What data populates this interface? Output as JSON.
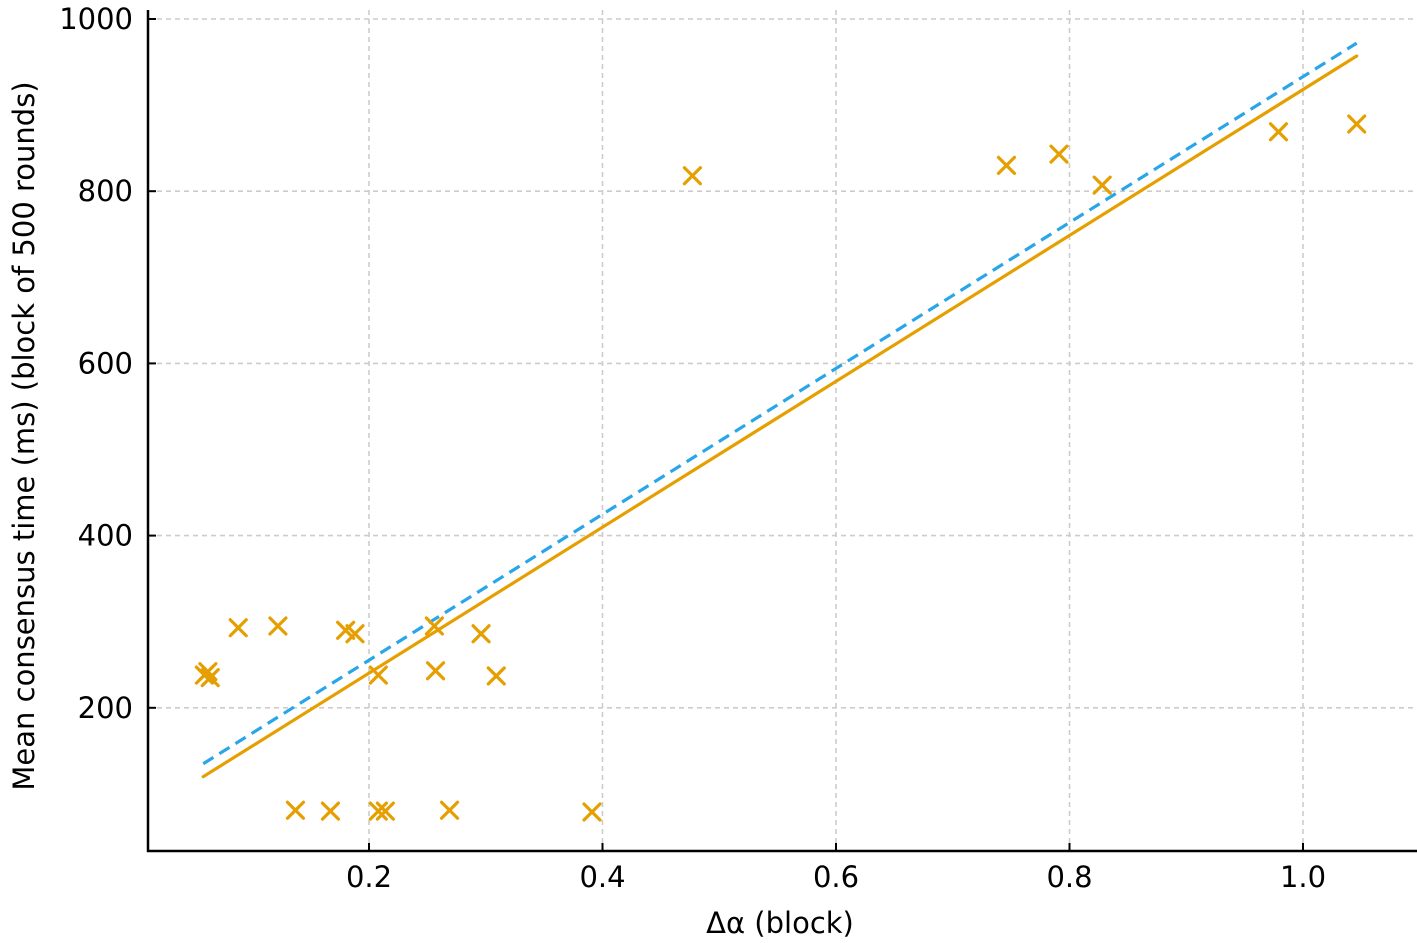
{
  "chart_data": {
    "type": "scatter",
    "title": "",
    "xlabel": "Δα (block)",
    "ylabel": "Mean consensus time (ms) (block of 500 rounds)",
    "xlim": [
      0.011,
      1.098
    ],
    "ylim": [
      40,
      1020
    ],
    "grid": true,
    "legend": null,
    "x_ticks": [
      0.2,
      0.4,
      0.6,
      0.8,
      1.0
    ],
    "x_tick_labels": [
      "0.2",
      "0.4",
      "0.6",
      "0.8",
      "1.0"
    ],
    "y_ticks": [
      200,
      400,
      600,
      800,
      1000
    ],
    "y_tick_labels": [
      "200",
      "400",
      "600",
      "800",
      "1000"
    ],
    "colors": {
      "points": "#E69F00",
      "solid_fit": "#E69F00",
      "dashed_fit": "#2AA6E8",
      "grid": "#cccccc",
      "axis": "#000000"
    },
    "series": [
      {
        "name": "observations",
        "kind": "scatter",
        "marker": "x",
        "color": "#E69F00",
        "points": [
          [
            0.059,
            238
          ],
          [
            0.064,
            235
          ],
          [
            0.062,
            242
          ],
          [
            0.088,
            293
          ],
          [
            0.122,
            295
          ],
          [
            0.18,
            290
          ],
          [
            0.188,
            286
          ],
          [
            0.208,
            238
          ],
          [
            0.256,
            295
          ],
          [
            0.257,
            243
          ],
          [
            0.296,
            286
          ],
          [
            0.309,
            237
          ],
          [
            0.137,
            81
          ],
          [
            0.167,
            80
          ],
          [
            0.208,
            80
          ],
          [
            0.214,
            80
          ],
          [
            0.269,
            81
          ],
          [
            0.391,
            79
          ],
          [
            0.477,
            818
          ],
          [
            0.746,
            830
          ],
          [
            0.791,
            843
          ],
          [
            0.828,
            807
          ],
          [
            0.979,
            869
          ],
          [
            1.046,
            878
          ]
        ]
      },
      {
        "name": "fit-solid",
        "kind": "line",
        "style": "solid",
        "color": "#E69F00",
        "points": [
          [
            0.058,
            120
          ],
          [
            1.046,
            957
          ]
        ]
      },
      {
        "name": "fit-dashed",
        "kind": "line",
        "style": "dashed",
        "color": "#2AA6E8",
        "points": [
          [
            0.058,
            135
          ],
          [
            1.046,
            972
          ]
        ]
      }
    ]
  }
}
